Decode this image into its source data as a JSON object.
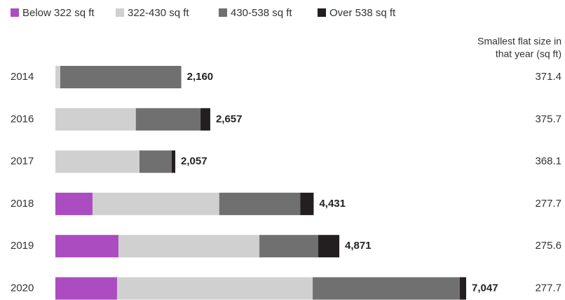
{
  "chart_data": {
    "type": "stacked-bar-horizontal",
    "categories": [
      "2014",
      "2016",
      "2017",
      "2018",
      "2019",
      "2020"
    ],
    "series": [
      {
        "name": "Below 322 sq ft",
        "color": "#ac4cc1",
        "values": [
          0,
          0,
          0,
          637,
          1082,
          1058
        ]
      },
      {
        "name": "322-430 sq ft",
        "color": "#d0d0d0",
        "values": [
          84,
          1380,
          1443,
          2174,
          2418,
          3356
        ]
      },
      {
        "name": "430-538 sq ft",
        "color": "#707070",
        "values": [
          2076,
          1110,
          553,
          1392,
          1010,
          2525
        ]
      },
      {
        "name": "Over 538 sq ft",
        "color": "#231f20",
        "values": [
          0,
          167,
          61,
          228,
          361,
          108
        ]
      }
    ],
    "totals": [
      2160,
      2657,
      2057,
      4431,
      4871,
      7047
    ],
    "totals_labels": [
      "2,160",
      "2,657",
      "2,057",
      "4,431",
      "4,871",
      "7,047"
    ],
    "side_column": {
      "header": [
        "Smallest flat size in",
        "that year (sq ft)"
      ],
      "values": [
        371.4,
        375.7,
        368.1,
        277.7,
        275.6,
        277.7
      ]
    },
    "xlim": [
      0,
      7047
    ]
  }
}
